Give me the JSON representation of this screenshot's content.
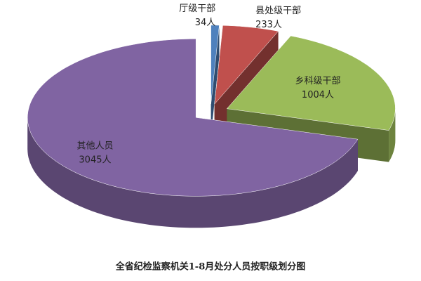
{
  "chart_data": {
    "type": "pie3d",
    "title": "全省纪检监察机关1-8月处分人员按职级划分图",
    "categories": [
      "厅级干部",
      "县处级干部",
      "乡科级干部",
      "其他人员"
    ],
    "values": [
      34,
      233,
      1004,
      3045
    ],
    "value_labels": [
      "34人",
      "233人",
      "1004人",
      "3045人"
    ],
    "colors": [
      "#4f81bd",
      "#c0504d",
      "#9bbb59",
      "#8064a2"
    ]
  }
}
